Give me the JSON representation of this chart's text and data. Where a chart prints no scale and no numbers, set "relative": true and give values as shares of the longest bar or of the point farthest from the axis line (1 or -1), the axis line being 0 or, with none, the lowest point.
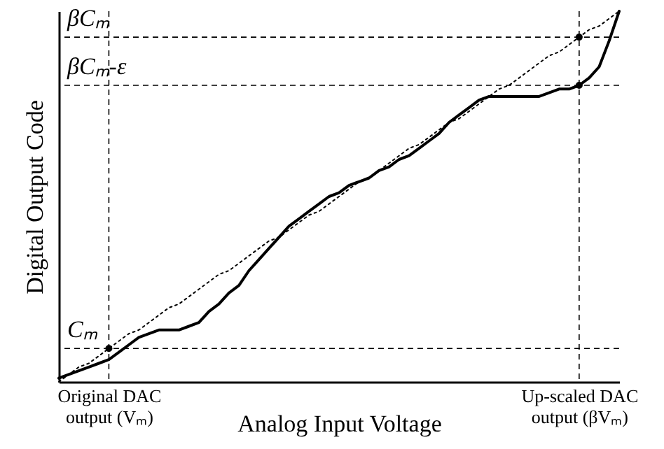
{
  "chart_data": {
    "type": "line",
    "relative": true,
    "xlabel": "Analog Input Voltage",
    "ylabel": "Digital Output Code",
    "categories": [
      null,
      null,
      null,
      null,
      null,
      "Original DAC output (Vₘ)",
      null,
      null,
      null,
      null,
      null,
      null,
      null,
      null,
      null,
      null,
      null,
      null,
      null,
      null,
      null,
      null,
      null,
      null,
      null,
      null,
      null,
      null,
      null,
      null,
      null,
      null,
      null,
      null,
      null,
      null,
      null,
      null,
      null,
      null,
      null,
      null,
      null,
      null,
      null,
      null,
      null,
      null,
      null,
      null,
      null,
      null,
      "Up-scaled DAC output (βVₘ)",
      null,
      null,
      null,
      null
    ],
    "series": [
      {
        "color": "#000000",
        "line_style": "solid",
        "values": [
          0.01,
          0.02,
          0.03,
          0.04,
          0.05,
          0.06,
          0.08,
          0.1,
          0.12,
          0.13,
          0.14,
          0.14,
          0.14,
          0.15,
          0.16,
          0.19,
          0.21,
          0.24,
          0.26,
          0.3,
          0.33,
          0.36,
          0.39,
          0.42,
          0.44,
          0.46,
          0.48,
          0.5,
          0.51,
          0.53,
          0.54,
          0.55,
          0.57,
          0.58,
          0.6,
          0.61,
          0.63,
          0.65,
          0.67,
          0.7,
          0.72,
          0.74,
          0.76,
          0.77,
          0.77,
          0.77,
          0.77,
          0.77,
          0.77,
          0.78,
          0.79,
          0.79,
          0.8,
          0.82,
          0.85,
          0.92,
          1
        ]
      },
      {
        "color": "#000000",
        "line_style": "dotted",
        "values": [
          0,
          0.02,
          0.04,
          0.05,
          0.07,
          0.09,
          0.11,
          0.13,
          0.14,
          0.16,
          0.18,
          0.2,
          0.21,
          0.23,
          0.25,
          0.27,
          0.29,
          0.3,
          0.32,
          0.34,
          0.36,
          0.38,
          0.39,
          0.41,
          0.43,
          0.45,
          0.46,
          0.48,
          0.5,
          0.52,
          0.54,
          0.55,
          0.57,
          0.59,
          0.61,
          0.63,
          0.64,
          0.66,
          0.68,
          0.7,
          0.71,
          0.73,
          0.75,
          0.77,
          0.79,
          0.8,
          0.82,
          0.84,
          0.86,
          0.88,
          0.89,
          0.91,
          0.93,
          0.95,
          0.96,
          0.98,
          1
        ]
      },
      {
        "type": "scatter",
        "color": "#000000",
        "marker": "circle",
        "x": [
          "Original DAC output (Vₘ)",
          "Up-scaled DAC output (βVₘ)",
          "Up-scaled DAC output (βVₘ)"
        ],
        "values": [
          0.09,
          0.93,
          0.8
        ]
      }
    ],
    "ref_lines": [
      {
        "axis": "y",
        "value": 0.93,
        "label": "βCₘ",
        "line_style": "dashed"
      },
      {
        "axis": "y",
        "value": 0.8,
        "label": "βCₘ-ε",
        "line_style": "dashed"
      },
      {
        "axis": "y",
        "value": 0.09,
        "label": "Cₘ",
        "line_style": "dashed"
      },
      {
        "axis": "x",
        "value": "Original DAC output (Vₘ)",
        "line_style": "dashed"
      },
      {
        "axis": "x",
        "value": "Up-scaled DAC output (βVₘ)",
        "line_style": "dashed"
      }
    ]
  }
}
